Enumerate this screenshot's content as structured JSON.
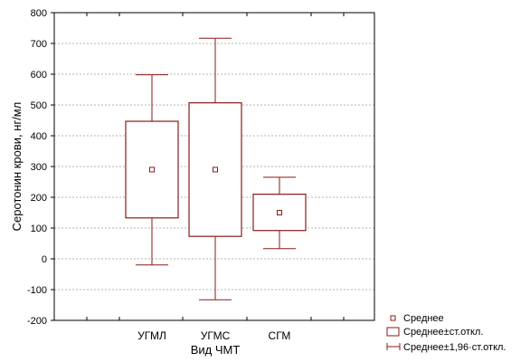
{
  "chart_data": {
    "type": "boxplot",
    "ylabel": "Серотонин крови, нг/мл",
    "xlabel": "Вид ЧМТ",
    "ylim": [
      -200,
      800
    ],
    "yticks": [
      -200,
      -100,
      0,
      100,
      200,
      300,
      400,
      500,
      600,
      700,
      800
    ],
    "grid": true,
    "legend_position": "bottom-right",
    "colors": {
      "box": "#8b1a1a",
      "grid": "#9a9a9a",
      "axis": "#000000"
    },
    "categories": [
      "УГМЛ",
      "УГМС",
      "СГМ"
    ],
    "groups": [
      {
        "category": "УГМЛ",
        "mean": 290,
        "sd_low": 133,
        "sd_high": 447,
        "whisker_low": -20,
        "whisker_high": 598
      },
      {
        "category": "УГМС",
        "mean": 290,
        "sd_low": 73,
        "sd_high": 507,
        "whisker_low": -133,
        "whisker_high": 717
      },
      {
        "category": "СГМ",
        "mean": 150,
        "sd_low": 92,
        "sd_high": 210,
        "whisker_low": 33,
        "whisker_high": 265
      }
    ],
    "legend": [
      {
        "label": "Среднее",
        "marker": "square-point"
      },
      {
        "label": "Среднее±ст.откл.",
        "marker": "box"
      },
      {
        "label": "Среднее±1,96·ст.откл.",
        "marker": "whisker"
      }
    ]
  }
}
